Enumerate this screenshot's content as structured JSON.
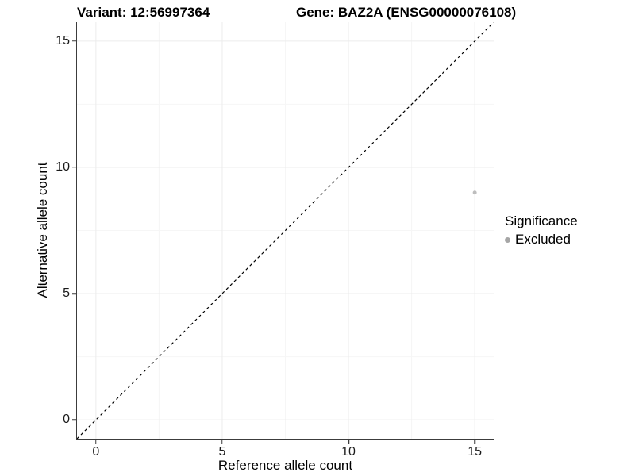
{
  "chart_data": {
    "type": "scatter",
    "titles": {
      "left": "Variant: 12:56997364",
      "right": "Gene: BAZ2A (ENSG00000076108)"
    },
    "xlabel": "Reference allele count",
    "ylabel": "Alternative allele count",
    "xlim": [
      -0.75,
      15.75
    ],
    "ylim": [
      -0.75,
      15.75
    ],
    "xticks": [
      0,
      5,
      10,
      15
    ],
    "yticks": [
      0,
      5,
      10,
      15
    ],
    "minor_gridlines": [
      2.5,
      7.5,
      12.5
    ],
    "grid": "major+minor",
    "series": [
      {
        "name": "Excluded",
        "color": "#bdbdbd",
        "point_radius": 2.5,
        "points": [
          {
            "x": 15,
            "y": 9
          }
        ]
      }
    ],
    "reference_line": {
      "type": "identity",
      "x1": -0.75,
      "y1": -0.75,
      "x2": 15.75,
      "y2": 15.75,
      "style": "dashed",
      "color": "#000000"
    },
    "legend": {
      "title": "Significance",
      "position": "right",
      "entries": [
        {
          "label": "Excluded",
          "color": "#a6a6a6"
        }
      ]
    },
    "colors": {
      "grid_major": "#ececec",
      "grid_minor": "#f6f6f6",
      "axis_line": "#3c3c3c",
      "text": "#000000"
    }
  }
}
